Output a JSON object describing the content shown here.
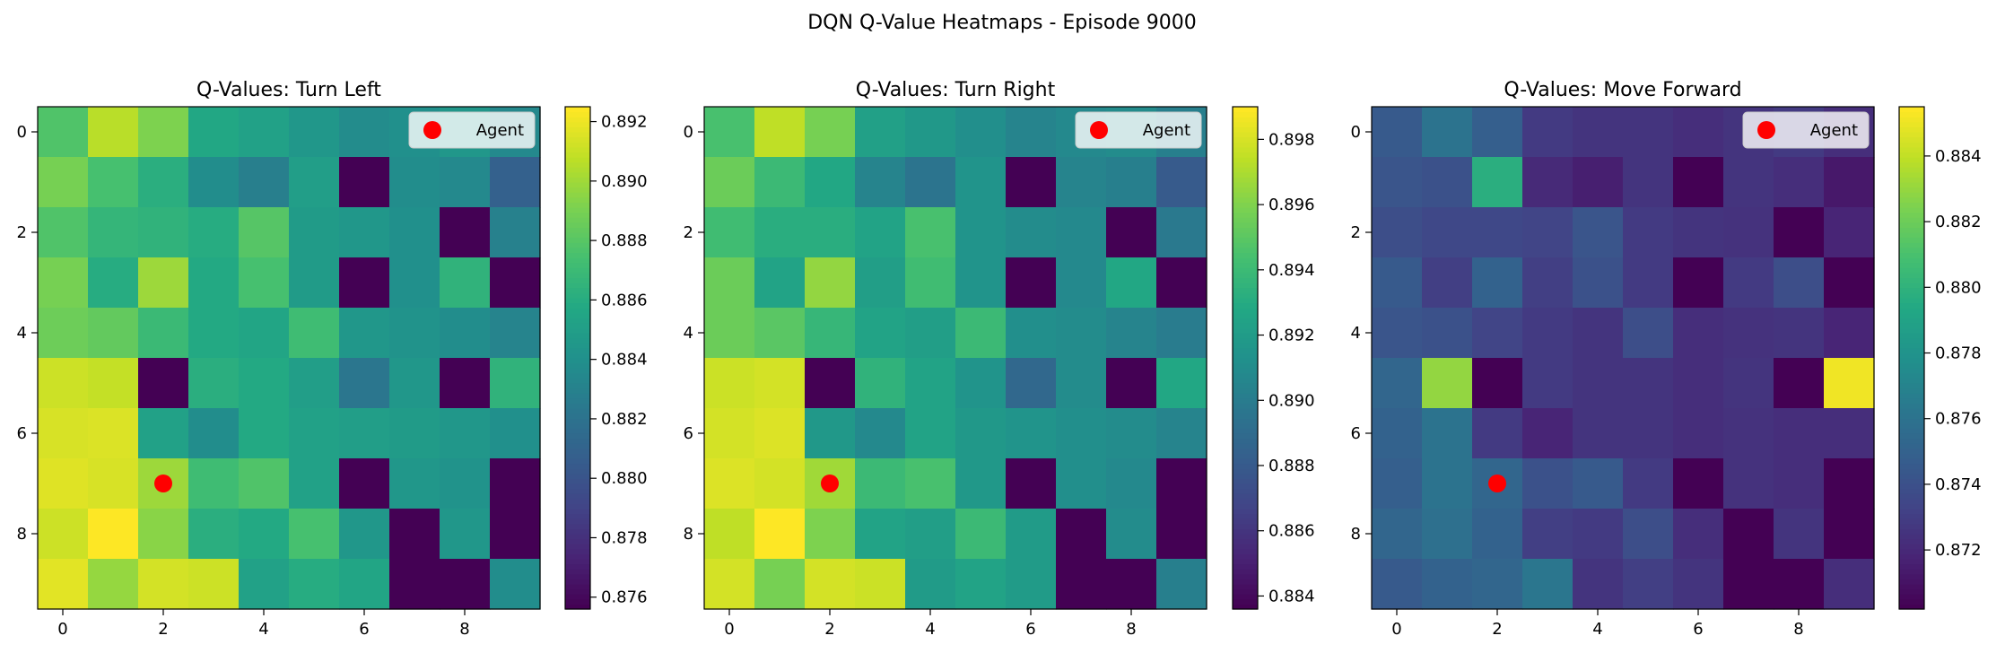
{
  "figure": {
    "suptitle": "DQN Q-Value Heatmaps - Episode 9000"
  },
  "chart_data": [
    {
      "type": "heatmap",
      "title": "Q-Values: Turn Left",
      "colormap": "viridis",
      "vmin": 0.8756,
      "vmax": 0.8925,
      "colorbar_ticks": [
        0.876,
        0.878,
        0.88,
        0.882,
        0.884,
        0.886,
        0.888,
        0.89,
        0.892
      ],
      "x_ticks": [
        0,
        2,
        4,
        6,
        8
      ],
      "y_ticks": [
        0,
        2,
        4,
        6,
        8
      ],
      "legend": {
        "label": "Agent",
        "placement": "upper right"
      },
      "agent": {
        "x": 2,
        "y": 7,
        "color": "#ff0000"
      },
      "values": [
        [
          0.8878,
          0.8907,
          0.8892,
          0.8857,
          0.8852,
          0.8845,
          0.8837,
          0.884,
          0.8845,
          0.8835
        ],
        [
          0.889,
          0.8875,
          0.8862,
          0.8838,
          0.8828,
          0.885,
          0.8756,
          0.8838,
          0.8835,
          0.8808
        ],
        [
          0.8878,
          0.8867,
          0.8865,
          0.886,
          0.888,
          0.8848,
          0.8845,
          0.884,
          0.8756,
          0.883
        ],
        [
          0.889,
          0.886,
          0.89,
          0.8858,
          0.8875,
          0.8848,
          0.8756,
          0.884,
          0.8865,
          0.8756
        ],
        [
          0.8887,
          0.8884,
          0.887,
          0.8858,
          0.8855,
          0.8872,
          0.8845,
          0.8842,
          0.8838,
          0.8832
        ],
        [
          0.8912,
          0.891,
          0.8756,
          0.8862,
          0.8858,
          0.885,
          0.8822,
          0.8845,
          0.8756,
          0.8865
        ],
        [
          0.8915,
          0.8916,
          0.8852,
          0.8838,
          0.8858,
          0.8852,
          0.885,
          0.8848,
          0.8845,
          0.884
        ],
        [
          0.8917,
          0.8915,
          0.89,
          0.8872,
          0.8878,
          0.8852,
          0.8756,
          0.8845,
          0.8842,
          0.8756
        ],
        [
          0.8912,
          0.8925,
          0.8895,
          0.8862,
          0.8858,
          0.8875,
          0.8845,
          0.8756,
          0.8845,
          0.8756
        ],
        [
          0.8918,
          0.8898,
          0.8914,
          0.8912,
          0.8852,
          0.886,
          0.8855,
          0.8756,
          0.8756,
          0.8838
        ]
      ]
    },
    {
      "type": "heatmap",
      "title": "Q-Values: Turn Right",
      "colormap": "viridis",
      "vmin": 0.8836,
      "vmax": 0.899,
      "colorbar_ticks": [
        0.884,
        0.886,
        0.888,
        0.89,
        0.892,
        0.894,
        0.896,
        0.898
      ],
      "x_ticks": [
        0,
        2,
        4,
        6,
        8
      ],
      "y_ticks": [
        0,
        2,
        4,
        6,
        8
      ],
      "legend": {
        "label": "Agent",
        "placement": "upper right"
      },
      "agent": {
        "x": 2,
        "y": 7,
        "color": "#ff0000"
      },
      "values": [
        [
          0.8945,
          0.8975,
          0.8958,
          0.8923,
          0.8918,
          0.8912,
          0.8905,
          0.8908,
          0.891,
          0.8902
        ],
        [
          0.8955,
          0.894,
          0.8928,
          0.8905,
          0.8895,
          0.8915,
          0.8836,
          0.8905,
          0.8902,
          0.888
        ],
        [
          0.8942,
          0.8932,
          0.8932,
          0.8925,
          0.8945,
          0.8915,
          0.891,
          0.8908,
          0.8836,
          0.8898
        ],
        [
          0.8955,
          0.8925,
          0.8965,
          0.8922,
          0.8942,
          0.8915,
          0.8836,
          0.8908,
          0.8928,
          0.8836
        ],
        [
          0.8955,
          0.895,
          0.8938,
          0.8925,
          0.8922,
          0.894,
          0.8912,
          0.891,
          0.8905,
          0.89
        ],
        [
          0.8978,
          0.898,
          0.8836,
          0.8935,
          0.8925,
          0.8915,
          0.8888,
          0.891,
          0.8836,
          0.8928
        ],
        [
          0.898,
          0.8982,
          0.8918,
          0.8908,
          0.8925,
          0.8918,
          0.8915,
          0.8912,
          0.891,
          0.8905
        ],
        [
          0.8982,
          0.898,
          0.8968,
          0.894,
          0.8945,
          0.8918,
          0.8836,
          0.8912,
          0.8908,
          0.8836
        ],
        [
          0.8975,
          0.899,
          0.896,
          0.8925,
          0.8922,
          0.894,
          0.892,
          0.8836,
          0.891,
          0.8836
        ],
        [
          0.898,
          0.8958,
          0.898,
          0.8978,
          0.892,
          0.8925,
          0.892,
          0.8836,
          0.8836,
          0.8902
        ]
      ]
    },
    {
      "type": "heatmap",
      "title": "Q-Values: Move Forward",
      "colormap": "viridis",
      "vmin": 0.8702,
      "vmax": 0.8855,
      "colorbar_ticks": [
        0.872,
        0.874,
        0.876,
        0.878,
        0.88,
        0.882,
        0.884
      ],
      "x_ticks": [
        0,
        2,
        4,
        6,
        8
      ],
      "y_ticks": [
        0,
        2,
        4,
        6,
        8
      ],
      "legend": {
        "label": "Agent",
        "placement": "upper right"
      },
      "agent": {
        "x": 2,
        "y": 7,
        "color": "#ff0000"
      },
      "values": [
        [
          0.8745,
          0.876,
          0.8748,
          0.8728,
          0.8725,
          0.8725,
          0.8722,
          0.8725,
          0.8728,
          0.8722
        ],
        [
          0.8742,
          0.874,
          0.8798,
          0.872,
          0.8715,
          0.8725,
          0.8702,
          0.8725,
          0.8722,
          0.8712
        ],
        [
          0.8738,
          0.8735,
          0.8735,
          0.8733,
          0.8742,
          0.8728,
          0.8725,
          0.8724,
          0.8702,
          0.8718
        ],
        [
          0.8745,
          0.873,
          0.875,
          0.873,
          0.874,
          0.8728,
          0.8702,
          0.8728,
          0.8738,
          0.8702
        ],
        [
          0.8742,
          0.874,
          0.8733,
          0.8728,
          0.8725,
          0.8738,
          0.8722,
          0.8724,
          0.8725,
          0.8718
        ],
        [
          0.8752,
          0.883,
          0.8702,
          0.8728,
          0.8725,
          0.8725,
          0.8722,
          0.8725,
          0.8702,
          0.8852
        ],
        [
          0.875,
          0.876,
          0.8728,
          0.8718,
          0.8725,
          0.8725,
          0.8722,
          0.8724,
          0.8722,
          0.8722
        ],
        [
          0.8748,
          0.876,
          0.8752,
          0.874,
          0.8745,
          0.8728,
          0.8702,
          0.8724,
          0.8722,
          0.8702
        ],
        [
          0.8752,
          0.8758,
          0.875,
          0.873,
          0.8728,
          0.8738,
          0.8722,
          0.8702,
          0.8725,
          0.8702
        ],
        [
          0.8745,
          0.875,
          0.8752,
          0.8762,
          0.8725,
          0.873,
          0.8725,
          0.8702,
          0.8702,
          0.8722
        ]
      ]
    }
  ]
}
